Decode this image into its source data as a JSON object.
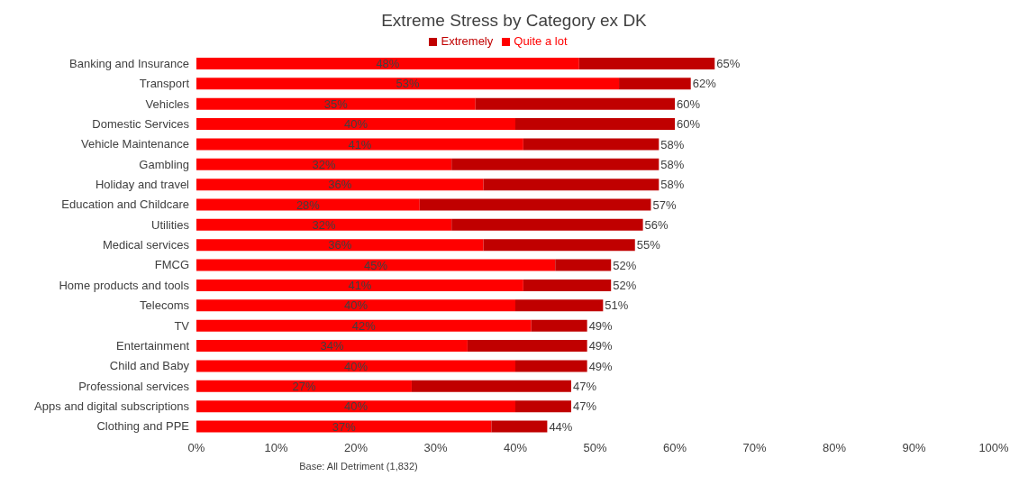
{
  "chart_data": {
    "type": "bar",
    "orientation": "horizontal",
    "stacked": true,
    "title": "Extreme Stress by Category ex DK",
    "categories": [
      "Banking and Insurance",
      "Transport",
      "Vehicles",
      "Domestic Services",
      "Vehicle Maintenance",
      "Gambling",
      "Holiday and travel",
      "Education and Childcare",
      "Utilities",
      "Medical services",
      "FMCG",
      "Home products and tools",
      "Telecoms",
      "TV",
      "Entertainment",
      "Child and Baby",
      "Professional services",
      "Apps and digital subscriptions",
      "Clothing and PPE"
    ],
    "series": [
      {
        "name": "Quite a lot",
        "color": "#ff0000",
        "values": [
          48,
          53,
          35,
          40,
          41,
          32,
          36,
          28,
          32,
          36,
          45,
          41,
          40,
          42,
          34,
          40,
          27,
          40,
          37
        ],
        "value_labels": [
          "48%",
          "53%",
          "35%",
          "40%",
          "41%",
          "32%",
          "36%",
          "28%",
          "32%",
          "36%",
          "45%",
          "41%",
          "40%",
          "42%",
          "34%",
          "40%",
          "27%",
          "40%",
          "37%"
        ]
      },
      {
        "name": "Extremely",
        "color": "#c00000",
        "values": [
          17,
          9,
          25,
          20,
          17,
          26,
          22,
          29,
          24,
          19,
          7,
          11,
          11,
          7,
          15,
          9,
          20,
          7,
          7
        ]
      }
    ],
    "totals": [
      "65%",
      "62%",
      "60%",
      "60%",
      "58%",
      "58%",
      "58%",
      "57%",
      "56%",
      "55%",
      "52%",
      "52%",
      "51%",
      "49%",
      "49%",
      "49%",
      "47%",
      "47%",
      "44%"
    ],
    "xlim": [
      0,
      100
    ],
    "xticks": [
      {
        "value": 0,
        "label": "0%"
      },
      {
        "value": 10,
        "label": "10%"
      },
      {
        "value": 20,
        "label": "20%"
      },
      {
        "value": 30,
        "label": "30%"
      },
      {
        "value": 40,
        "label": "40%"
      },
      {
        "value": 50,
        "label": "50%"
      },
      {
        "value": 60,
        "label": "60%"
      },
      {
        "value": 70,
        "label": "70%"
      },
      {
        "value": 80,
        "label": "80%"
      },
      {
        "value": 90,
        "label": "90%"
      },
      {
        "value": 100,
        "label": "100%"
      }
    ],
    "grid": false,
    "legend": "top",
    "annotations": [
      "Base: All Detriment (1,832)"
    ]
  }
}
